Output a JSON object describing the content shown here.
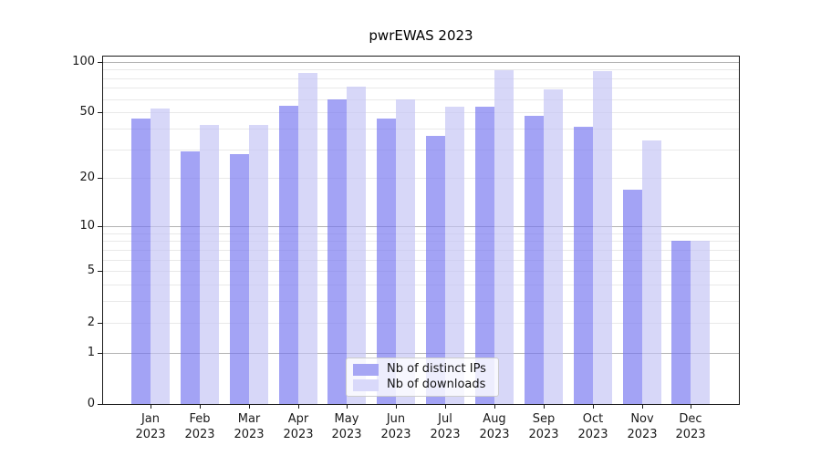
{
  "title": "pwrEWAS 2023",
  "chart_data": {
    "type": "bar",
    "title": "pwrEWAS 2023",
    "categories": [
      "Jan 2023",
      "Feb 2023",
      "Mar 2023",
      "Apr 2023",
      "May 2023",
      "Jun 2023",
      "Jul 2023",
      "Aug 2023",
      "Sep 2023",
      "Oct 2023",
      "Nov 2023",
      "Dec 2023"
    ],
    "series": [
      {
        "name": "Nb of distinct IPs",
        "color": "rgba(115,115,240,0.66)",
        "color_hex": "#a6a6f4",
        "values": [
          46,
          29,
          28,
          55,
          60,
          46,
          36,
          54,
          48,
          41,
          17,
          8
        ]
      },
      {
        "name": "Nb of downloads",
        "color": "rgba(195,195,245,0.66)",
        "color_hex": "#d9d9fa",
        "values": [
          53,
          42,
          42,
          86,
          71,
          60,
          54,
          89,
          69,
          88,
          34,
          8
        ]
      }
    ],
    "xlabel": "",
    "ylabel": "",
    "y_scale": "log1p",
    "ylim": [
      0,
      107
    ],
    "y_axis_ticks": [
      100,
      50,
      20,
      10,
      5,
      2,
      1,
      0
    ],
    "y_grid_major": [
      1,
      10,
      100
    ],
    "y_grid_minor": [
      2,
      3,
      4,
      5,
      6,
      7,
      8,
      9,
      20,
      30,
      40,
      50,
      60,
      70,
      80,
      90
    ],
    "grid": "horizontal",
    "legend_position": "lower center"
  },
  "colors": {
    "grid_major": "#b3b3b3",
    "grid_minor": "#e9e9e9",
    "axis": "#1a1a1a",
    "background": "#ffffff"
  }
}
